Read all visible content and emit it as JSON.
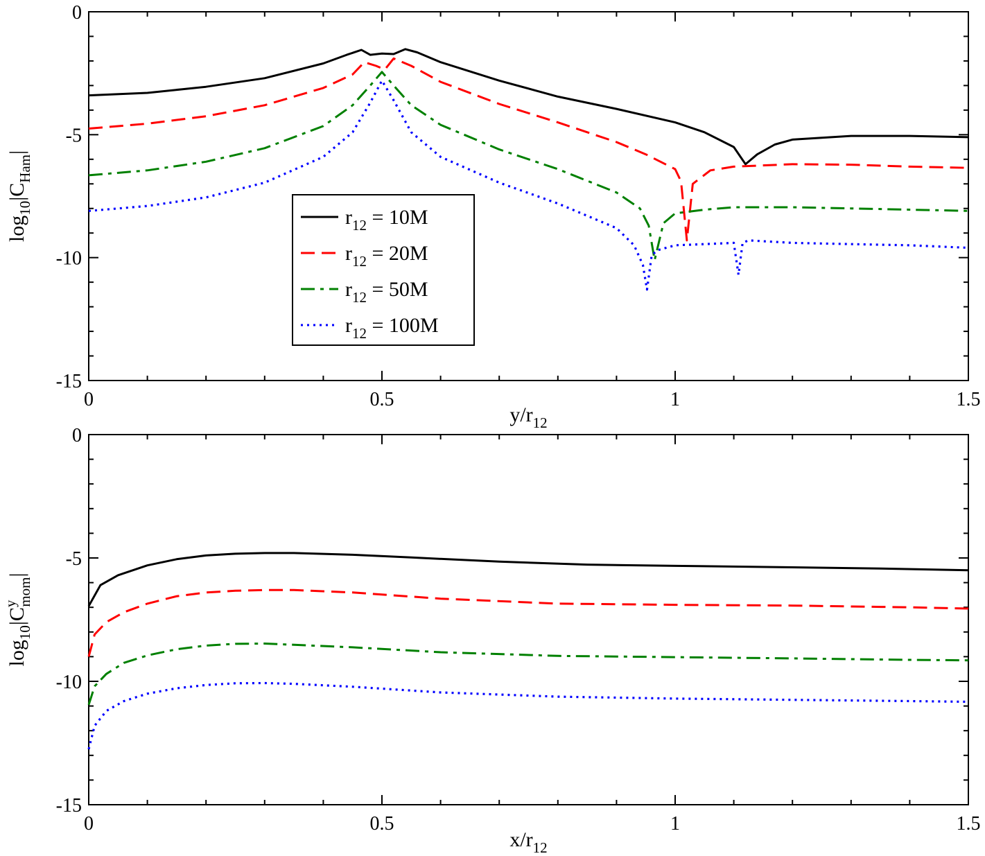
{
  "chart_data": [
    {
      "type": "line",
      "xlabel": {
        "main": "y/r",
        "sub": "12"
      },
      "ylabel": {
        "main": "log",
        "sub": "10",
        "mid": "|C",
        "sub2": "Ham",
        "end": "|"
      },
      "xlim": [
        0,
        1.5
      ],
      "ylim": [
        -15,
        0
      ],
      "xticks": [
        {
          "v": 0,
          "label": "0"
        },
        {
          "v": 0.5,
          "label": "0.5"
        },
        {
          "v": 1,
          "label": "1"
        },
        {
          "v": 1.5,
          "label": "1.5"
        }
      ],
      "yticks": [
        {
          "v": 0,
          "label": "0"
        },
        {
          "v": -5,
          "label": "-5"
        },
        {
          "v": -10,
          "label": "-10"
        },
        {
          "v": -15,
          "label": "-15"
        }
      ],
      "legend": {
        "placement": "center-left",
        "entries": [
          {
            "main": "r",
            "sub": "12",
            "rest": " = 10M"
          },
          {
            "main": "r",
            "sub": "12",
            "rest": " = 20M"
          },
          {
            "main": "r",
            "sub": "12",
            "rest": " = 50M"
          },
          {
            "main": "r",
            "sub": "12",
            "rest": " = 100M"
          }
        ]
      },
      "series": [
        {
          "color": "#000000",
          "style": "solid",
          "points": [
            [
              0,
              -3.4
            ],
            [
              0.1,
              -3.3
            ],
            [
              0.2,
              -3.05
            ],
            [
              0.3,
              -2.7
            ],
            [
              0.4,
              -2.1
            ],
            [
              0.44,
              -1.75
            ],
            [
              0.465,
              -1.55
            ],
            [
              0.48,
              -1.75
            ],
            [
              0.5,
              -1.7
            ],
            [
              0.52,
              -1.72
            ],
            [
              0.54,
              -1.52
            ],
            [
              0.56,
              -1.65
            ],
            [
              0.6,
              -2.05
            ],
            [
              0.7,
              -2.8
            ],
            [
              0.8,
              -3.45
            ],
            [
              0.9,
              -3.95
            ],
            [
              1.0,
              -4.5
            ],
            [
              1.05,
              -4.9
            ],
            [
              1.1,
              -5.5
            ],
            [
              1.12,
              -6.2
            ],
            [
              1.14,
              -5.8
            ],
            [
              1.17,
              -5.4
            ],
            [
              1.2,
              -5.2
            ],
            [
              1.3,
              -5.05
            ],
            [
              1.4,
              -5.05
            ],
            [
              1.5,
              -5.1
            ]
          ]
        },
        {
          "color": "#ff0000",
          "style": "dashed",
          "points": [
            [
              0,
              -4.75
            ],
            [
              0.1,
              -4.55
            ],
            [
              0.2,
              -4.25
            ],
            [
              0.3,
              -3.8
            ],
            [
              0.4,
              -3.1
            ],
            [
              0.45,
              -2.55
            ],
            [
              0.47,
              -2.05
            ],
            [
              0.49,
              -2.2
            ],
            [
              0.505,
              -2.35
            ],
            [
              0.52,
              -1.9
            ],
            [
              0.55,
              -2.2
            ],
            [
              0.6,
              -2.85
            ],
            [
              0.7,
              -3.75
            ],
            [
              0.8,
              -4.5
            ],
            [
              0.9,
              -5.3
            ],
            [
              0.95,
              -5.8
            ],
            [
              1.0,
              -6.4
            ],
            [
              1.01,
              -6.9
            ],
            [
              1.02,
              -9.3
            ],
            [
              1.03,
              -7.0
            ],
            [
              1.06,
              -6.45
            ],
            [
              1.1,
              -6.3
            ],
            [
              1.2,
              -6.2
            ],
            [
              1.3,
              -6.22
            ],
            [
              1.4,
              -6.3
            ],
            [
              1.5,
              -6.35
            ]
          ]
        },
        {
          "color": "#008000",
          "style": "dashdot",
          "points": [
            [
              0,
              -6.65
            ],
            [
              0.1,
              -6.45
            ],
            [
              0.2,
              -6.1
            ],
            [
              0.3,
              -5.55
            ],
            [
              0.4,
              -4.65
            ],
            [
              0.45,
              -3.8
            ],
            [
              0.48,
              -3.0
            ],
            [
              0.5,
              -2.45
            ],
            [
              0.52,
              -3.0
            ],
            [
              0.55,
              -3.8
            ],
            [
              0.6,
              -4.6
            ],
            [
              0.7,
              -5.6
            ],
            [
              0.8,
              -6.4
            ],
            [
              0.9,
              -7.35
            ],
            [
              0.94,
              -8.0
            ],
            [
              0.955,
              -8.7
            ],
            [
              0.965,
              -10.1
            ],
            [
              0.98,
              -8.6
            ],
            [
              1.0,
              -8.2
            ],
            [
              1.05,
              -8.05
            ],
            [
              1.1,
              -7.95
            ],
            [
              1.2,
              -7.95
            ],
            [
              1.3,
              -8.0
            ],
            [
              1.4,
              -8.05
            ],
            [
              1.5,
              -8.1
            ]
          ]
        },
        {
          "color": "#0000ff",
          "style": "dotted",
          "points": [
            [
              0,
              -8.1
            ],
            [
              0.1,
              -7.9
            ],
            [
              0.2,
              -7.55
            ],
            [
              0.3,
              -6.95
            ],
            [
              0.4,
              -5.9
            ],
            [
              0.45,
              -4.9
            ],
            [
              0.48,
              -3.7
            ],
            [
              0.5,
              -2.8
            ],
            [
              0.52,
              -3.6
            ],
            [
              0.55,
              -4.9
            ],
            [
              0.6,
              -5.9
            ],
            [
              0.7,
              -6.95
            ],
            [
              0.8,
              -7.8
            ],
            [
              0.9,
              -8.8
            ],
            [
              0.93,
              -9.5
            ],
            [
              0.945,
              -10.3
            ],
            [
              0.952,
              -11.3
            ],
            [
              0.96,
              -9.9
            ],
            [
              0.97,
              -9.7
            ],
            [
              1.0,
              -9.5
            ],
            [
              1.05,
              -9.45
            ],
            [
              1.1,
              -9.4
            ],
            [
              1.108,
              -10.7
            ],
            [
              1.115,
              -9.4
            ],
            [
              1.125,
              -9.3
            ],
            [
              1.2,
              -9.4
            ],
            [
              1.3,
              -9.45
            ],
            [
              1.4,
              -9.5
            ],
            [
              1.5,
              -9.6
            ]
          ]
        }
      ]
    },
    {
      "type": "line",
      "xlabel": {
        "main": "x/r",
        "sub": "12"
      },
      "ylabel": {
        "main": "log",
        "sub": "10",
        "mid": "|C",
        "sup": "y",
        "sub2": "mom",
        "end": "|"
      },
      "xlim": [
        0,
        1.5
      ],
      "ylim": [
        -15,
        0
      ],
      "xticks": [
        {
          "v": 0,
          "label": "0"
        },
        {
          "v": 0.5,
          "label": "0.5"
        },
        {
          "v": 1,
          "label": "1"
        },
        {
          "v": 1.5,
          "label": "1.5"
        }
      ],
      "yticks": [
        {
          "v": 0,
          "label": "0"
        },
        {
          "v": -5,
          "label": "-5"
        },
        {
          "v": -10,
          "label": "-10"
        },
        {
          "v": -15,
          "label": "-15"
        }
      ],
      "series": [
        {
          "color": "#000000",
          "style": "solid",
          "points": [
            [
              0,
              -6.95
            ],
            [
              0.02,
              -6.1
            ],
            [
              0.05,
              -5.7
            ],
            [
              0.1,
              -5.3
            ],
            [
              0.15,
              -5.05
            ],
            [
              0.2,
              -4.9
            ],
            [
              0.25,
              -4.83
            ],
            [
              0.3,
              -4.8
            ],
            [
              0.35,
              -4.8
            ],
            [
              0.45,
              -4.87
            ],
            [
              0.55,
              -4.98
            ],
            [
              0.7,
              -5.15
            ],
            [
              0.85,
              -5.27
            ],
            [
              1.0,
              -5.32
            ],
            [
              1.2,
              -5.38
            ],
            [
              1.35,
              -5.43
            ],
            [
              1.5,
              -5.5
            ]
          ]
        },
        {
          "color": "#ff0000",
          "style": "dashed",
          "points": [
            [
              0,
              -9.0
            ],
            [
              0.01,
              -8.1
            ],
            [
              0.03,
              -7.6
            ],
            [
              0.06,
              -7.2
            ],
            [
              0.1,
              -6.85
            ],
            [
              0.15,
              -6.55
            ],
            [
              0.2,
              -6.4
            ],
            [
              0.25,
              -6.33
            ],
            [
              0.3,
              -6.3
            ],
            [
              0.35,
              -6.3
            ],
            [
              0.45,
              -6.4
            ],
            [
              0.6,
              -6.65
            ],
            [
              0.8,
              -6.85
            ],
            [
              1.0,
              -6.9
            ],
            [
              1.2,
              -6.93
            ],
            [
              1.4,
              -7.0
            ],
            [
              1.5,
              -7.05
            ]
          ]
        },
        {
          "color": "#008000",
          "style": "dashdot",
          "points": [
            [
              0,
              -10.95
            ],
            [
              0.01,
              -10.2
            ],
            [
              0.03,
              -9.7
            ],
            [
              0.06,
              -9.25
            ],
            [
              0.1,
              -8.95
            ],
            [
              0.15,
              -8.7
            ],
            [
              0.2,
              -8.55
            ],
            [
              0.25,
              -8.48
            ],
            [
              0.3,
              -8.47
            ],
            [
              0.35,
              -8.52
            ],
            [
              0.45,
              -8.62
            ],
            [
              0.6,
              -8.82
            ],
            [
              0.8,
              -8.97
            ],
            [
              1.0,
              -9.02
            ],
            [
              1.2,
              -9.07
            ],
            [
              1.4,
              -9.13
            ],
            [
              1.5,
              -9.15
            ]
          ]
        },
        {
          "color": "#0000ff",
          "style": "dotted",
          "points": [
            [
              0,
              -12.75
            ],
            [
              0.01,
              -11.8
            ],
            [
              0.03,
              -11.2
            ],
            [
              0.06,
              -10.8
            ],
            [
              0.1,
              -10.5
            ],
            [
              0.15,
              -10.28
            ],
            [
              0.2,
              -10.15
            ],
            [
              0.25,
              -10.08
            ],
            [
              0.3,
              -10.07
            ],
            [
              0.35,
              -10.1
            ],
            [
              0.45,
              -10.22
            ],
            [
              0.6,
              -10.45
            ],
            [
              0.8,
              -10.62
            ],
            [
              1.0,
              -10.7
            ],
            [
              1.2,
              -10.75
            ],
            [
              1.4,
              -10.8
            ],
            [
              1.5,
              -10.83
            ]
          ]
        }
      ]
    }
  ]
}
